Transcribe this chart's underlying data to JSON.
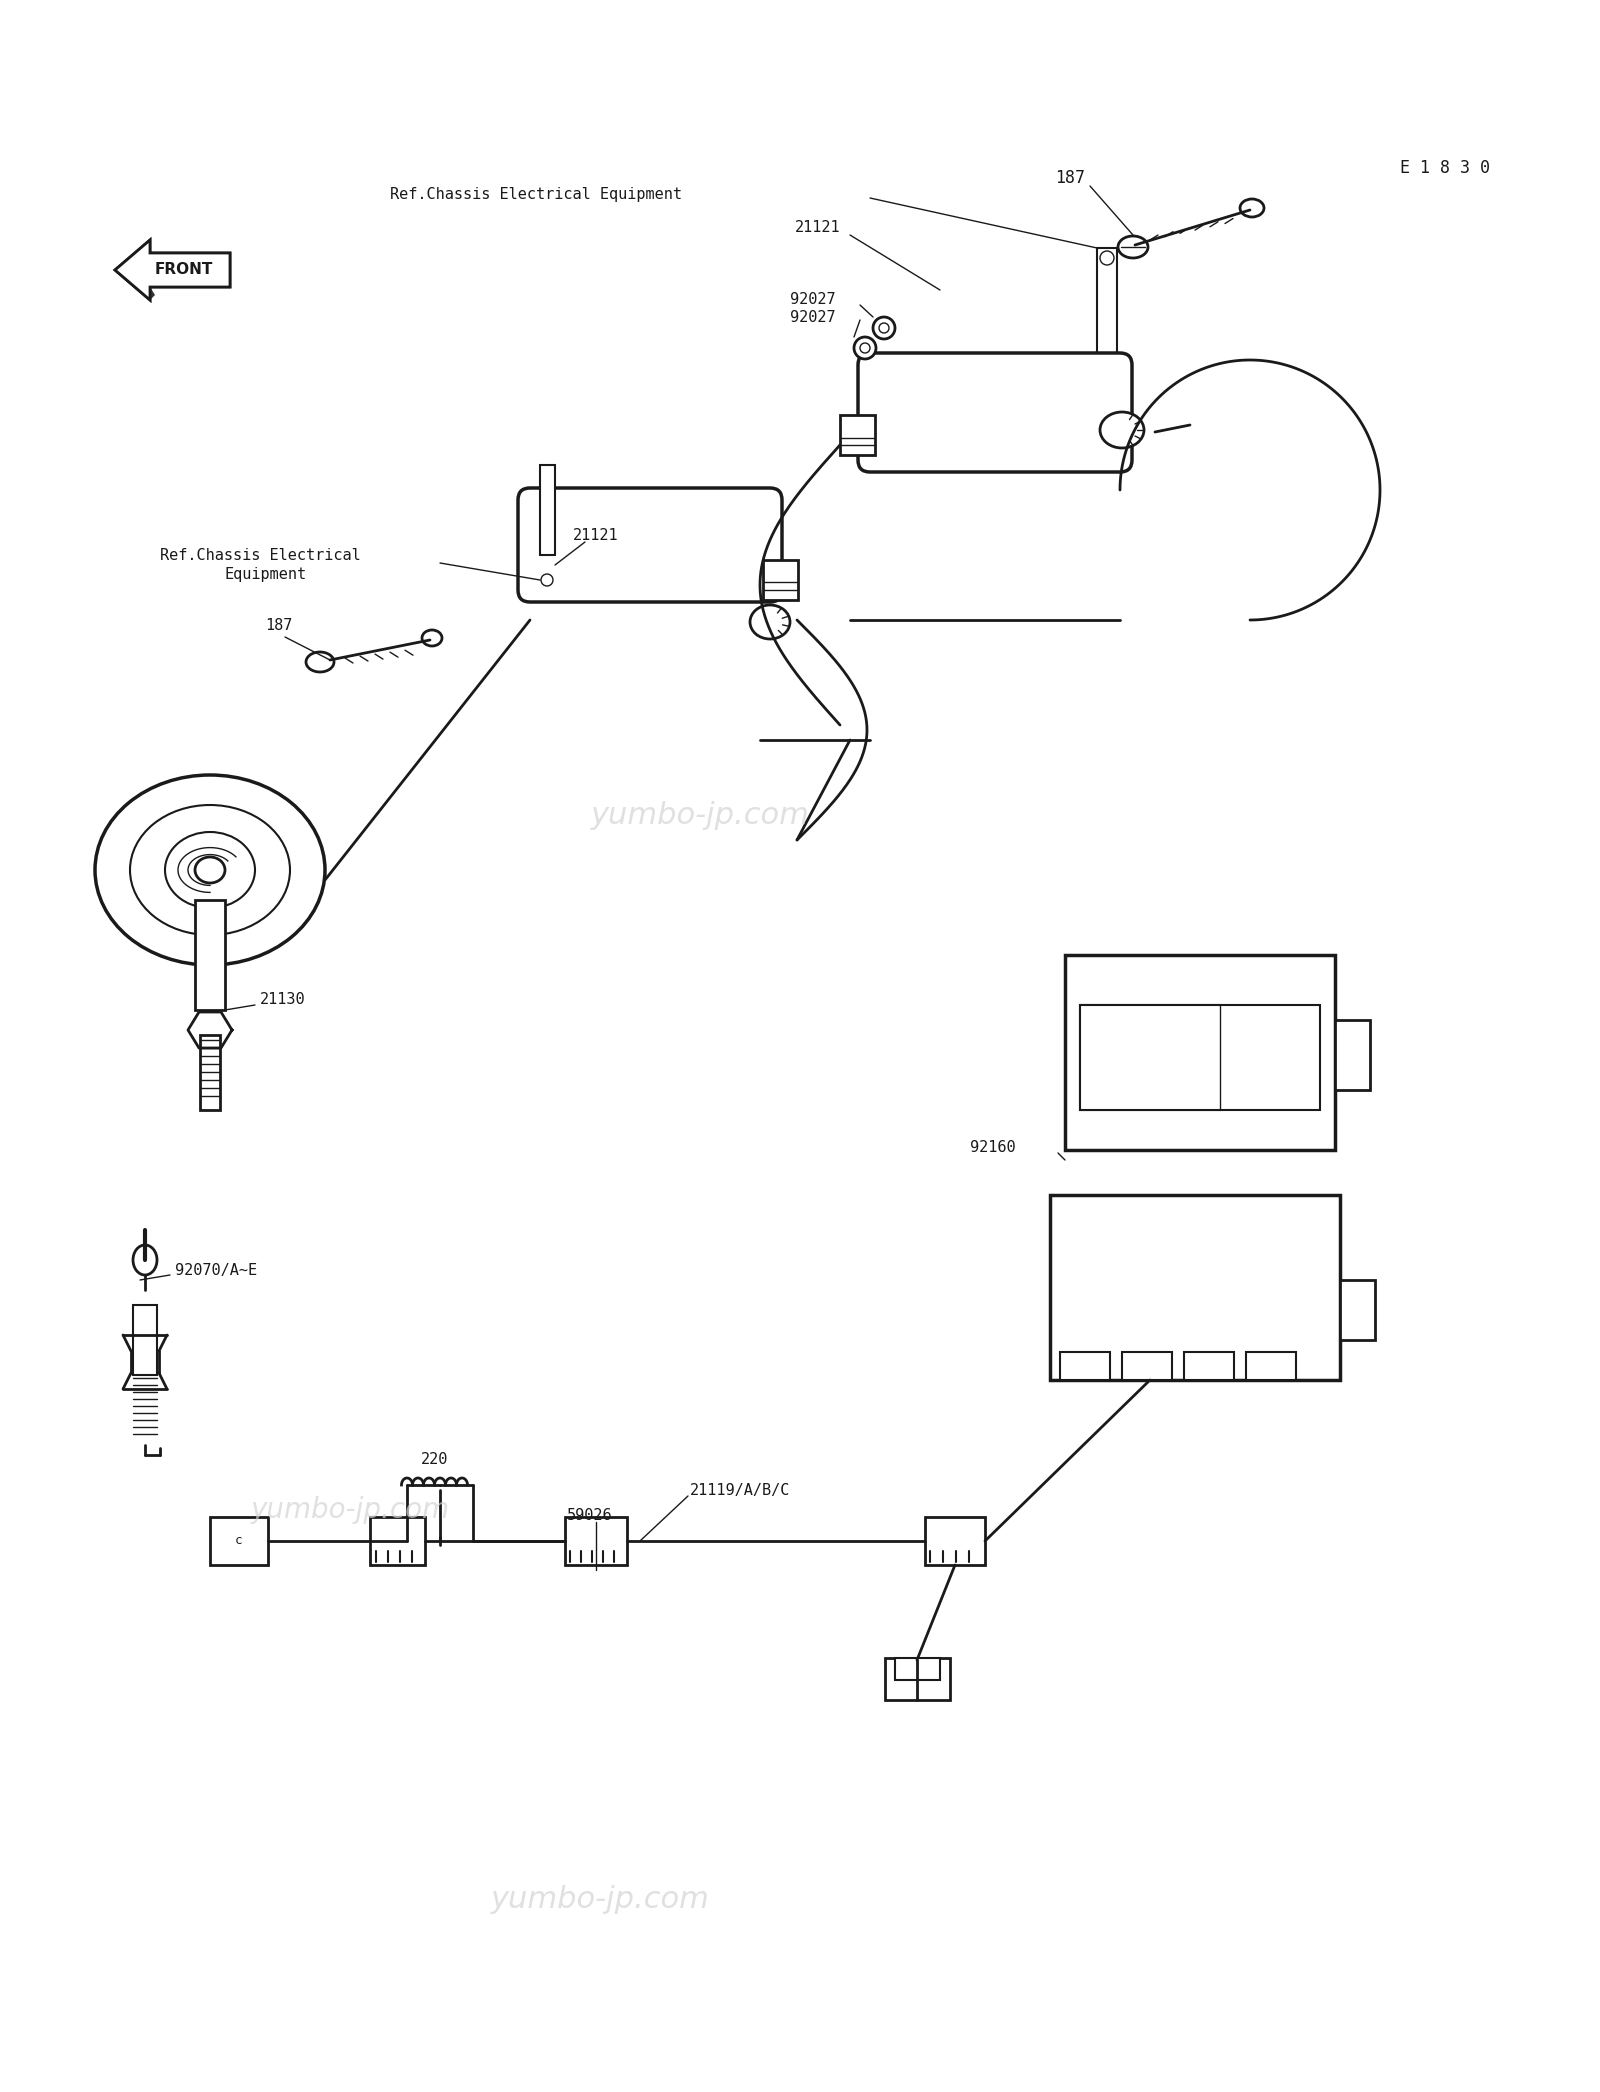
{
  "bg_color": "#ffffff",
  "line_color": "#1a1a1a",
  "watermark_color": "#d4d4d4",
  "watermark_text": "yumbo-jp.com",
  "e_code": "E 1 8 3 0",
  "labels": {
    "front": "FRONT",
    "ref_top": "Ref.Chassis Electrical Equipment",
    "ref_left_1": "Ref.Chassis Electrical",
    "ref_left_2": "Equipment",
    "p187_top": "187",
    "p187_left": "187",
    "p21121_top": "21121",
    "p21121_left": "21121",
    "p92027_1": "92027",
    "p92027_2": "92027",
    "p21130": "21130",
    "p92070": "92070/A~E",
    "p220": "220",
    "p59026": "59026",
    "p21119": "21119/A/B/C",
    "p92160": "92160"
  },
  "figsize": [
    16.0,
    20.92
  ],
  "dpi": 100
}
